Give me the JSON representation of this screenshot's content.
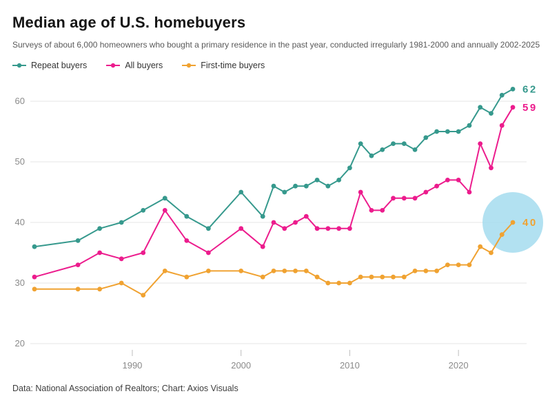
{
  "header": {
    "title": "Median age of U.S. homebuyers",
    "subtitle": "Surveys of about 6,000 homeowners who bought a primary residence in the past year, conducted irregularly 1981-2000 and annually 2002-2025"
  },
  "footer": {
    "text": "Data: National Association of Realtors; Chart: Axios Visuals"
  },
  "colors": {
    "repeat_buyers": "#36998d",
    "all_buyers": "#ec1c8d",
    "first_time_buyers": "#f0a231",
    "highlight_circle": "#a5dcee",
    "gridline": "#e4e4e4",
    "axis_text": "#8a8a8a"
  },
  "chart_data": {
    "type": "line",
    "title": "Median age of U.S. homebuyers",
    "xlabel": "",
    "ylabel": "",
    "ylim": [
      20,
      64
    ],
    "yticks": [
      20,
      30,
      40,
      50,
      60
    ],
    "xticks": [
      1990,
      2000,
      2010,
      2020
    ],
    "grid": "horizontal",
    "legend_position": "top",
    "x": [
      1981,
      1985,
      1987,
      1989,
      1991,
      1993,
      1995,
      1997,
      2000,
      2002,
      2003,
      2004,
      2005,
      2006,
      2007,
      2008,
      2009,
      2010,
      2011,
      2012,
      2013,
      2014,
      2015,
      2016,
      2017,
      2018,
      2019,
      2020,
      2021,
      2022,
      2023,
      2024,
      2025
    ],
    "series": [
      {
        "name": "Repeat buyers",
        "color": "#36998d",
        "end_label": "62",
        "values": [
          36,
          37,
          39,
          40,
          42,
          44,
          41,
          39,
          45,
          41,
          46,
          45,
          46,
          46,
          47,
          46,
          47,
          49,
          53,
          51,
          52,
          53,
          53,
          52,
          54,
          55,
          55,
          55,
          56,
          59,
          58,
          61,
          62
        ]
      },
      {
        "name": "All buyers",
        "color": "#ec1c8d",
        "end_label": "59",
        "values": [
          31,
          33,
          35,
          34,
          35,
          42,
          37,
          35,
          39,
          36,
          40,
          39,
          40,
          41,
          39,
          39,
          39,
          39,
          45,
          42,
          42,
          44,
          44,
          44,
          45,
          46,
          47,
          47,
          45,
          53,
          49,
          56,
          59
        ]
      },
      {
        "name": "First-time buyers",
        "color": "#f0a231",
        "end_label": "40",
        "values": [
          29,
          29,
          29,
          30,
          28,
          32,
          31,
          32,
          32,
          31,
          32,
          32,
          32,
          32,
          31,
          30,
          30,
          30,
          31,
          31,
          31,
          31,
          31,
          32,
          32,
          32,
          33,
          33,
          33,
          36,
          35,
          38,
          40
        ]
      }
    ],
    "highlight": {
      "series": "First-time buyers",
      "x": 2025,
      "value": 40,
      "color": "#a5dcee",
      "radius": 44
    }
  }
}
